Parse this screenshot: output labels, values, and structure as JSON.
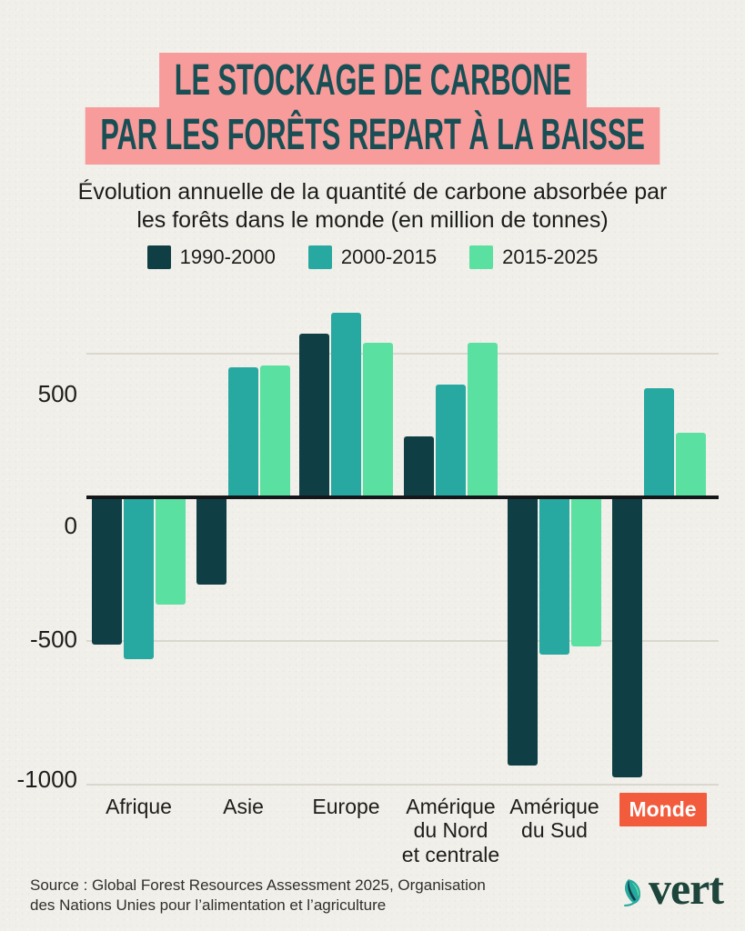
{
  "title": {
    "line1": "LE STOCKAGE DE CARBONE",
    "line2": "PAR LES FORÊTS REPART À LA BAISSE"
  },
  "subtitle": {
    "line1": "Évolution annuelle de la quantité de carbone absorbée par",
    "line2": "les forêts dans le monde (en million de tonnes)"
  },
  "chart_data": {
    "type": "bar",
    "title": "Le stockage de carbone par les forêts repart à la baisse",
    "subtitle": "Évolution annuelle de la quantité de carbone absorbée par les forêts dans le monde (en million de tonnes)",
    "unit": "millions de tonnes de carbone par an",
    "categories": [
      "Afrique",
      "Asie",
      "Europe",
      "Amérique du Nord et centrale",
      "Amérique du Sud",
      "Monde"
    ],
    "categories_display": [
      "Afrique",
      "Asie",
      "Europe",
      "Amérique\ndu Nord\net centrale",
      "Amérique\ndu Sud",
      "Monde"
    ],
    "series": [
      {
        "name": "1990-2000",
        "color": "#0f3f44",
        "values": [
          -510,
          -300,
          565,
          210,
          -930,
          -970
        ]
      },
      {
        "name": "2000-2015",
        "color": "#27a8a0",
        "values": [
          -560,
          450,
          640,
          390,
          -545,
          375
        ]
      },
      {
        "name": "2015-2025",
        "color": "#5ae0a0",
        "values": [
          -370,
          455,
          535,
          535,
          -515,
          220
        ]
      }
    ],
    "yticks": [
      500,
      0,
      -500,
      -1000
    ],
    "ylim": [
      -1050,
      700
    ],
    "grid": true,
    "legend_position": "top",
    "highlight_category": "Monde",
    "highlight_color": "#f25b3c"
  },
  "colors": {
    "background": "#f1efe9",
    "title_bg": "#f79b9b",
    "title_text": "#174f55",
    "axis_line": "#13171a",
    "gridline": "#d9d7ce",
    "badge_text": "#ffffff",
    "logo_green": "#1d453b"
  },
  "footer": {
    "source_line1": "Source : Global Forest Resources Assessment 2025, Organisation",
    "source_line2": "des Nations Unies pour l’alimentation et l’agriculture",
    "logo_text": "vert"
  }
}
